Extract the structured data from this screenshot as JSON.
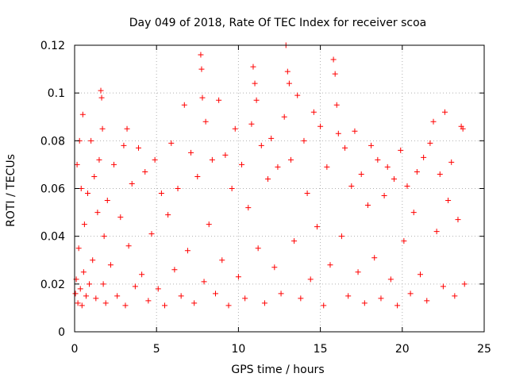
{
  "chart_data": {
    "type": "scatter",
    "title": "Day 049 of 2018, Rate Of TEC Index for receiver scoa",
    "xlabel": "GPS time / hours",
    "ylabel": "ROTI / TECUs",
    "xlim": [
      0,
      25
    ],
    "ylim": [
      0,
      0.12
    ],
    "xticks": [
      "0",
      "5",
      "10",
      "15",
      "20",
      "25"
    ],
    "yticks": [
      "0",
      "0.02",
      "0.04",
      "0.06",
      "0.08",
      "0.1",
      "0.12"
    ],
    "grid": true,
    "marker": "+",
    "marker_color": "#ff0000",
    "series": [
      {
        "values": [
          [
            0.05,
            0.016
          ],
          [
            0.1,
            0.022
          ],
          [
            0.15,
            0.07
          ],
          [
            0.2,
            0.012
          ],
          [
            0.25,
            0.035
          ],
          [
            0.3,
            0.08
          ],
          [
            0.35,
            0.018
          ],
          [
            0.4,
            0.06
          ],
          [
            0.45,
            0.011
          ],
          [
            0.5,
            0.091
          ],
          [
            0.55,
            0.025
          ],
          [
            0.6,
            0.045
          ],
          [
            0.7,
            0.015
          ],
          [
            0.8,
            0.058
          ],
          [
            0.9,
            0.02
          ],
          [
            1.0,
            0.08
          ],
          [
            1.1,
            0.03
          ],
          [
            1.2,
            0.065
          ],
          [
            1.3,
            0.014
          ],
          [
            1.4,
            0.05
          ],
          [
            1.5,
            0.072
          ],
          [
            1.6,
            0.101
          ],
          [
            1.65,
            0.098
          ],
          [
            1.7,
            0.085
          ],
          [
            1.75,
            0.02
          ],
          [
            1.8,
            0.04
          ],
          [
            1.9,
            0.012
          ],
          [
            2.0,
            0.055
          ],
          [
            2.2,
            0.028
          ],
          [
            2.4,
            0.07
          ],
          [
            2.6,
            0.015
          ],
          [
            2.8,
            0.048
          ],
          [
            3.0,
            0.078
          ],
          [
            3.1,
            0.011
          ],
          [
            3.2,
            0.085
          ],
          [
            3.3,
            0.036
          ],
          [
            3.5,
            0.062
          ],
          [
            3.7,
            0.019
          ],
          [
            3.9,
            0.077
          ],
          [
            4.1,
            0.024
          ],
          [
            4.3,
            0.067
          ],
          [
            4.5,
            0.013
          ],
          [
            4.7,
            0.041
          ],
          [
            4.9,
            0.072
          ],
          [
            5.1,
            0.018
          ],
          [
            5.3,
            0.058
          ],
          [
            5.5,
            0.011
          ],
          [
            5.7,
            0.049
          ],
          [
            5.9,
            0.079
          ],
          [
            6.1,
            0.026
          ],
          [
            6.3,
            0.06
          ],
          [
            6.5,
            0.015
          ],
          [
            6.7,
            0.095
          ],
          [
            6.9,
            0.034
          ],
          [
            7.1,
            0.075
          ],
          [
            7.3,
            0.012
          ],
          [
            7.5,
            0.065
          ],
          [
            7.7,
            0.116
          ],
          [
            7.75,
            0.11
          ],
          [
            7.8,
            0.098
          ],
          [
            7.9,
            0.021
          ],
          [
            8.0,
            0.088
          ],
          [
            8.2,
            0.045
          ],
          [
            8.4,
            0.072
          ],
          [
            8.6,
            0.016
          ],
          [
            8.8,
            0.097
          ],
          [
            9.0,
            0.03
          ],
          [
            9.2,
            0.074
          ],
          [
            9.4,
            0.011
          ],
          [
            9.6,
            0.06
          ],
          [
            9.8,
            0.085
          ],
          [
            10.0,
            0.023
          ],
          [
            10.2,
            0.07
          ],
          [
            10.4,
            0.014
          ],
          [
            10.6,
            0.052
          ],
          [
            10.8,
            0.087
          ],
          [
            10.9,
            0.111
          ],
          [
            11.0,
            0.104
          ],
          [
            11.1,
            0.097
          ],
          [
            11.2,
            0.035
          ],
          [
            11.4,
            0.078
          ],
          [
            11.6,
            0.012
          ],
          [
            11.8,
            0.064
          ],
          [
            12.0,
            0.081
          ],
          [
            12.2,
            0.027
          ],
          [
            12.4,
            0.069
          ],
          [
            12.6,
            0.016
          ],
          [
            12.8,
            0.09
          ],
          [
            12.9,
            0.12
          ],
          [
            13.0,
            0.109
          ],
          [
            13.1,
            0.104
          ],
          [
            13.2,
            0.072
          ],
          [
            13.4,
            0.038
          ],
          [
            13.6,
            0.099
          ],
          [
            13.8,
            0.014
          ],
          [
            14.0,
            0.08
          ],
          [
            14.2,
            0.058
          ],
          [
            14.4,
            0.022
          ],
          [
            14.6,
            0.092
          ],
          [
            14.8,
            0.044
          ],
          [
            15.0,
            0.086
          ],
          [
            15.2,
            0.011
          ],
          [
            15.4,
            0.069
          ],
          [
            15.6,
            0.028
          ],
          [
            15.8,
            0.114
          ],
          [
            15.9,
            0.108
          ],
          [
            16.0,
            0.095
          ],
          [
            16.1,
            0.083
          ],
          [
            16.3,
            0.04
          ],
          [
            16.5,
            0.077
          ],
          [
            16.7,
            0.015
          ],
          [
            16.9,
            0.061
          ],
          [
            17.1,
            0.084
          ],
          [
            17.3,
            0.025
          ],
          [
            17.5,
            0.066
          ],
          [
            17.7,
            0.012
          ],
          [
            17.9,
            0.053
          ],
          [
            18.1,
            0.078
          ],
          [
            18.3,
            0.031
          ],
          [
            18.5,
            0.072
          ],
          [
            18.7,
            0.014
          ],
          [
            18.9,
            0.057
          ],
          [
            19.1,
            0.069
          ],
          [
            19.3,
            0.022
          ],
          [
            19.5,
            0.064
          ],
          [
            19.7,
            0.011
          ],
          [
            19.9,
            0.076
          ],
          [
            20.1,
            0.038
          ],
          [
            20.3,
            0.061
          ],
          [
            20.5,
            0.016
          ],
          [
            20.7,
            0.05
          ],
          [
            20.9,
            0.067
          ],
          [
            21.1,
            0.024
          ],
          [
            21.3,
            0.073
          ],
          [
            21.5,
            0.013
          ],
          [
            21.7,
            0.079
          ],
          [
            21.9,
            0.088
          ],
          [
            22.1,
            0.042
          ],
          [
            22.3,
            0.066
          ],
          [
            22.5,
            0.019
          ],
          [
            22.6,
            0.092
          ],
          [
            22.8,
            0.055
          ],
          [
            23.0,
            0.071
          ],
          [
            23.2,
            0.015
          ],
          [
            23.4,
            0.047
          ],
          [
            23.6,
            0.086
          ],
          [
            23.7,
            0.085
          ],
          [
            23.8,
            0.02
          ]
        ]
      }
    ]
  }
}
